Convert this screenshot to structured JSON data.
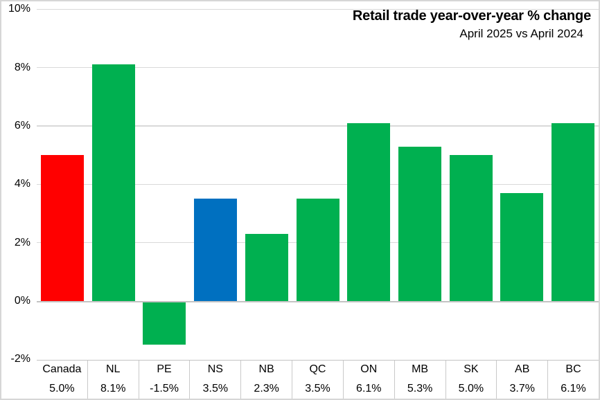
{
  "title": "Retail trade year-over-year % change",
  "subtitle": "April 2025 vs April 2024",
  "chart_data": {
    "type": "bar",
    "title": "Retail trade year-over-year % change",
    "subtitle": "April 2025 vs April 2024",
    "categories": [
      "Canada",
      "NL",
      "PE",
      "NS",
      "NB",
      "QC",
      "ON",
      "MB",
      "SK",
      "AB",
      "BC"
    ],
    "values": [
      5.0,
      8.1,
      -1.5,
      3.5,
      2.3,
      3.5,
      6.1,
      5.3,
      5.0,
      3.7,
      6.1
    ],
    "value_labels": [
      "5.0%",
      "8.1%",
      "-1.5%",
      "3.5%",
      "2.3%",
      "3.5%",
      "6.1%",
      "5.3%",
      "5.0%",
      "3.7%",
      "6.1%"
    ],
    "bar_colors": [
      "#ff0000",
      "#00b050",
      "#00b050",
      "#0070c0",
      "#00b050",
      "#00b050",
      "#00b050",
      "#00b050",
      "#00b050",
      "#00b050",
      "#00b050"
    ],
    "xlabel": "",
    "ylabel": "",
    "ylim": [
      -2,
      10
    ],
    "yticks": [
      10,
      8,
      6,
      4,
      2,
      0,
      -2
    ],
    "ytick_labels": [
      "10%",
      "8%",
      "6%",
      "4%",
      "2%",
      "0%",
      "-2%"
    ],
    "grid": true,
    "legend": "none",
    "data_table_shown": true
  },
  "colors": {
    "bar_canada": "#ff0000",
    "bar_province": "#00b050",
    "bar_highlight": "#0070c0",
    "gridline": "#d9d9d9",
    "zero_line": "#c3c3c3",
    "table_border": "#c9c9c9",
    "text": "#000000",
    "background": "#ffffff"
  }
}
